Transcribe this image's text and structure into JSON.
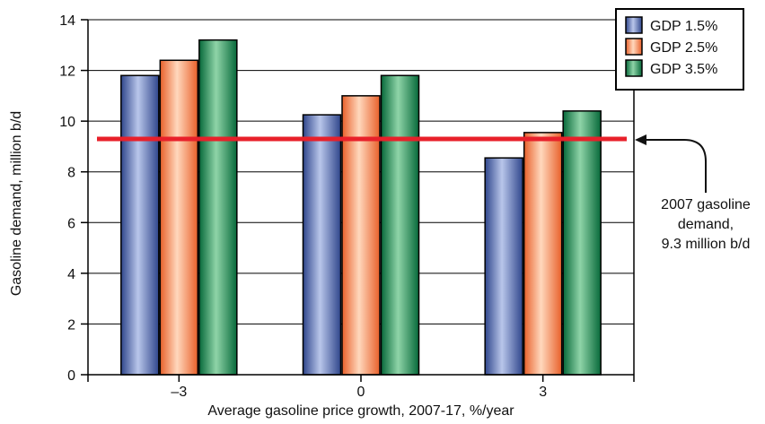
{
  "chart_data": {
    "type": "bar",
    "title": "",
    "xlabel": "Average gasoline price growth, 2007-17, %/year",
    "ylabel": "Gasoline demand, million b/d",
    "categories": [
      "–3",
      "0",
      "3"
    ],
    "ylim": [
      0,
      14
    ],
    "yticks": [
      0,
      2,
      4,
      6,
      8,
      10,
      12,
      14
    ],
    "grid": true,
    "legend_position": "top-right",
    "series": [
      {
        "name": "GDP 1.5%",
        "values": [
          11.8,
          10.25,
          8.55
        ],
        "color": "#4a66b0"
      },
      {
        "name": "GDP 2.5%",
        "values": [
          12.4,
          11.0,
          9.55
        ],
        "color": "#f07d45"
      },
      {
        "name": "GDP 3.5%",
        "values": [
          13.2,
          11.8,
          10.4
        ],
        "color": "#0e8a4e"
      }
    ],
    "reference_line": {
      "value": 9.3,
      "color": "#e8202a",
      "annotation": [
        "2007 gasoline",
        "demand,",
        "9.3 million b/d"
      ]
    }
  }
}
